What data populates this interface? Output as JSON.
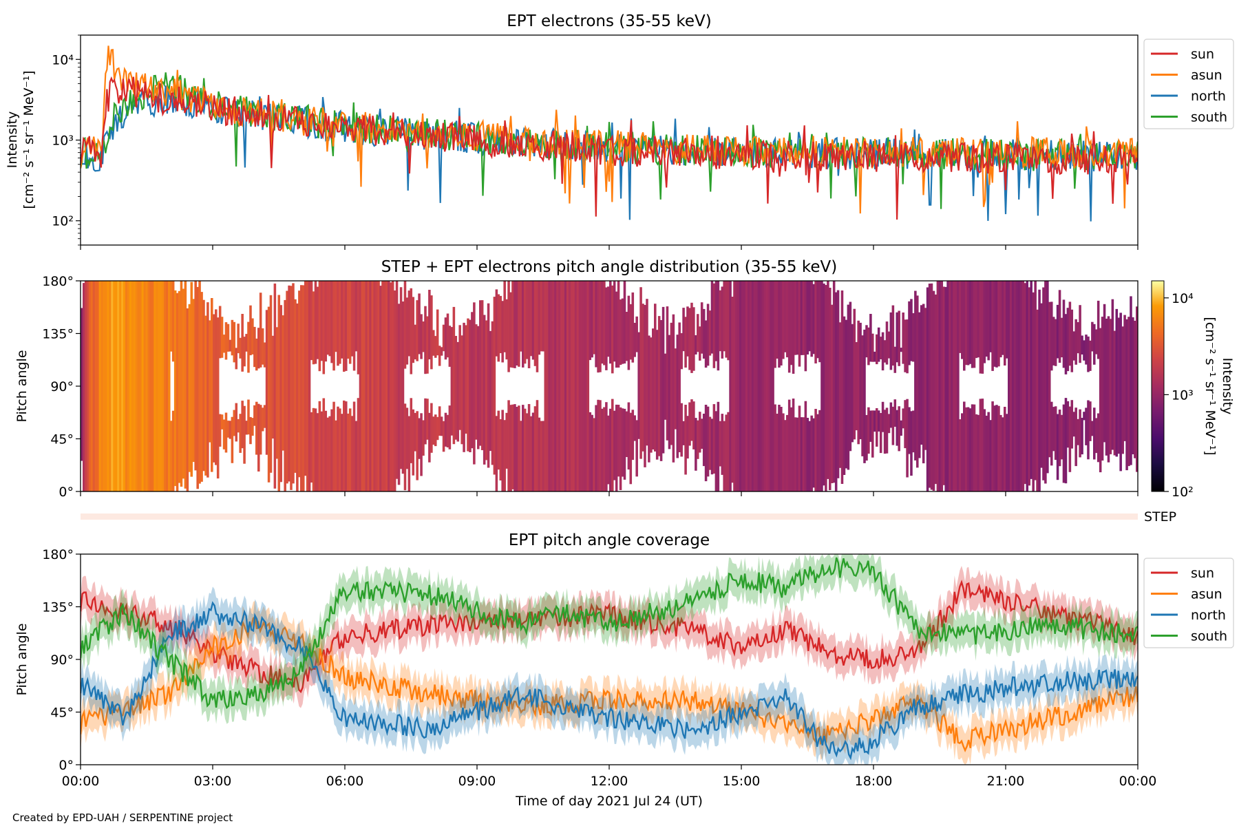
{
  "credit": "Created by EPD-UAH / SERPENTINE project",
  "xlabel": "Time of day 2021 Jul 24 (UT)",
  "xticks": [
    "00:00",
    "03:00",
    "06:00",
    "09:00",
    "12:00",
    "15:00",
    "18:00",
    "21:00",
    "00:00"
  ],
  "step_label": "STEP",
  "chart_data": [
    {
      "type": "line",
      "title": "EPT electrons (35-55 keV)",
      "ylabel_line1": "Intensity",
      "ylabel_line2": "[cm⁻² s⁻¹ sr⁻¹ MeV⁻¹]",
      "yscale": "log",
      "xlim_hours": [
        0,
        24
      ],
      "ylim": [
        50,
        20000
      ],
      "yticks": [
        "10²",
        "10³",
        "10⁴"
      ],
      "legend_placement": "outside right",
      "series": [
        {
          "name": "sun",
          "color": "#d62728",
          "keypoints": [
            [
              0,
              800
            ],
            [
              0.5,
              700
            ],
            [
              0.6,
              3000
            ],
            [
              0.8,
              4500
            ],
            [
              1.5,
              3500
            ],
            [
              3,
              2500
            ],
            [
              4,
              2000
            ],
            [
              6,
              1400
            ],
            [
              9,
              1000
            ],
            [
              12,
              750
            ],
            [
              15,
              650
            ],
            [
              18,
              620
            ],
            [
              21,
              600
            ],
            [
              24,
              580
            ]
          ]
        },
        {
          "name": "asun",
          "color": "#ff7f0e",
          "keypoints": [
            [
              0,
              700
            ],
            [
              0.5,
              800
            ],
            [
              0.65,
              13000
            ],
            [
              0.8,
              6000
            ],
            [
              1.5,
              4500
            ],
            [
              3,
              2800
            ],
            [
              4,
              2100
            ],
            [
              6,
              1500
            ],
            [
              9,
              1100
            ],
            [
              12,
              850
            ],
            [
              15,
              750
            ],
            [
              18,
              700
            ],
            [
              21,
              700
            ],
            [
              24,
              680
            ]
          ]
        },
        {
          "name": "north",
          "color": "#1f77b4",
          "keypoints": [
            [
              0,
              650
            ],
            [
              0.5,
              600
            ],
            [
              0.7,
              1500
            ],
            [
              1.2,
              2500
            ],
            [
              1.8,
              3200
            ],
            [
              3,
              2600
            ],
            [
              4,
              2000
            ],
            [
              6,
              1400
            ],
            [
              9,
              1050
            ],
            [
              12,
              800
            ],
            [
              15,
              700
            ],
            [
              18,
              680
            ],
            [
              21,
              650
            ],
            [
              24,
              620
            ]
          ]
        },
        {
          "name": "south",
          "color": "#2ca02c",
          "keypoints": [
            [
              0,
              700
            ],
            [
              0.5,
              650
            ],
            [
              0.7,
              1800
            ],
            [
              1.2,
              3000
            ],
            [
              1.9,
              5000
            ],
            [
              3,
              2800
            ],
            [
              4,
              2100
            ],
            [
              6,
              1450
            ],
            [
              9,
              1050
            ],
            [
              12,
              800
            ],
            [
              15,
              700
            ],
            [
              18,
              700
            ],
            [
              21,
              650
            ],
            [
              24,
              650
            ]
          ]
        }
      ]
    },
    {
      "type": "heatmap",
      "title": "STEP + EPT electrons pitch angle distribution (35-55 keV)",
      "ylabel": "Pitch angle",
      "ylim": [
        0,
        180
      ],
      "yticks": [
        "0°",
        "45°",
        "90°",
        "135°",
        "180°"
      ],
      "colorbar": {
        "label": "Intensity",
        "unit": "[cm⁻² s⁻¹ sr⁻¹ MeV⁻¹]",
        "range": [
          100,
          15000
        ],
        "ticks": [
          "10²",
          "10³",
          "10⁴"
        ],
        "colormap": "inferno"
      },
      "intensity_keypoints": [
        [
          0,
          900
        ],
        [
          0.6,
          8000
        ],
        [
          1.5,
          6000
        ],
        [
          3,
          3500
        ],
        [
          5,
          2500
        ],
        [
          8,
          1800
        ],
        [
          12,
          1300
        ],
        [
          16,
          1000
        ],
        [
          20,
          900
        ],
        [
          24,
          800
        ]
      ]
    },
    {
      "type": "line",
      "title": "EPT pitch angle coverage",
      "ylabel": "Pitch angle",
      "ylim": [
        0,
        180
      ],
      "yticks": [
        "0°",
        "45°",
        "90°",
        "135°",
        "180°"
      ],
      "legend_placement": "outside right",
      "series": [
        {
          "name": "sun",
          "color": "#d62728",
          "keypoints": [
            [
              0,
              140
            ],
            [
              2,
              120
            ],
            [
              3,
              95
            ],
            [
              4,
              80
            ],
            [
              5,
              70
            ],
            [
              6,
              110
            ],
            [
              8,
              120
            ],
            [
              10,
              125
            ],
            [
              12,
              128
            ],
            [
              14,
              115
            ],
            [
              15,
              100
            ],
            [
              16,
              115
            ],
            [
              17,
              95
            ],
            [
              18,
              90
            ],
            [
              19,
              95
            ],
            [
              20,
              150
            ],
            [
              22,
              130
            ],
            [
              24,
              110
            ]
          ]
        },
        {
          "name": "asun",
          "color": "#ff7f0e",
          "keypoints": [
            [
              0,
              35
            ],
            [
              2,
              60
            ],
            [
              3,
              100
            ],
            [
              4,
              120
            ],
            [
              5,
              105
            ],
            [
              6,
              75
            ],
            [
              8,
              60
            ],
            [
              10,
              50
            ],
            [
              12,
              55
            ],
            [
              14,
              55
            ],
            [
              16,
              35
            ],
            [
              17,
              25
            ],
            [
              18,
              40
            ],
            [
              19,
              55
            ],
            [
              20,
              20
            ],
            [
              22,
              40
            ],
            [
              24,
              60
            ]
          ]
        },
        {
          "name": "north",
          "color": "#1f77b4",
          "keypoints": [
            [
              0,
              70
            ],
            [
              1,
              40
            ],
            [
              2,
              110
            ],
            [
              3,
              130
            ],
            [
              4,
              120
            ],
            [
              5,
              100
            ],
            [
              6,
              40
            ],
            [
              8,
              30
            ],
            [
              10,
              60
            ],
            [
              12,
              40
            ],
            [
              14,
              30
            ],
            [
              15,
              45
            ],
            [
              16,
              60
            ],
            [
              17,
              10
            ],
            [
              18,
              20
            ],
            [
              19,
              50
            ],
            [
              20,
              60
            ],
            [
              22,
              70
            ],
            [
              24,
              75
            ]
          ]
        },
        {
          "name": "south",
          "color": "#2ca02c",
          "keypoints": [
            [
              0,
              100
            ],
            [
              1,
              130
            ],
            [
              2,
              90
            ],
            [
              3,
              55
            ],
            [
              4,
              60
            ],
            [
              5,
              80
            ],
            [
              6,
              150
            ],
            [
              8,
              145
            ],
            [
              10,
              120
            ],
            [
              11,
              130
            ],
            [
              12,
              120
            ],
            [
              14,
              140
            ],
            [
              15,
              160
            ],
            [
              16,
              150
            ],
            [
              17,
              170
            ],
            [
              18,
              165
            ],
            [
              19,
              115
            ],
            [
              20,
              110
            ],
            [
              22,
              120
            ],
            [
              24,
              110
            ]
          ]
        }
      ]
    }
  ]
}
